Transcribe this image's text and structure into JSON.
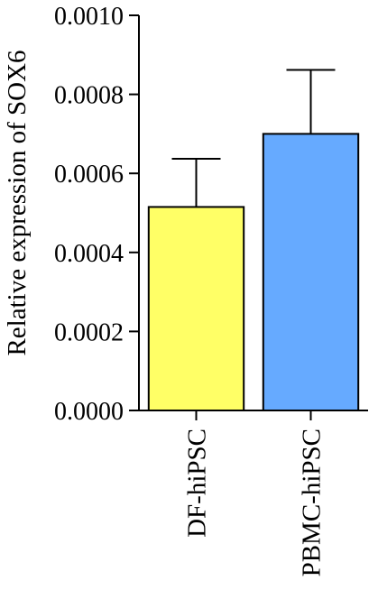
{
  "chart_data": {
    "type": "bar",
    "categories": [
      "DF-hiPSC",
      "PBMC-hiPSC"
    ],
    "values": [
      0.000515,
      0.0007
    ],
    "error_bars": [
      0.000122,
      0.000162
    ],
    "colors": [
      "#ffff66",
      "#66aaff"
    ],
    "title": "",
    "xlabel": "",
    "ylabel": "Relative expression of SOX6",
    "ylim": [
      0,
      0.001
    ],
    "yticks": [
      "0.0000",
      "0.0002",
      "0.0004",
      "0.0006",
      "0.0008",
      "0.0010"
    ],
    "grid": false
  }
}
